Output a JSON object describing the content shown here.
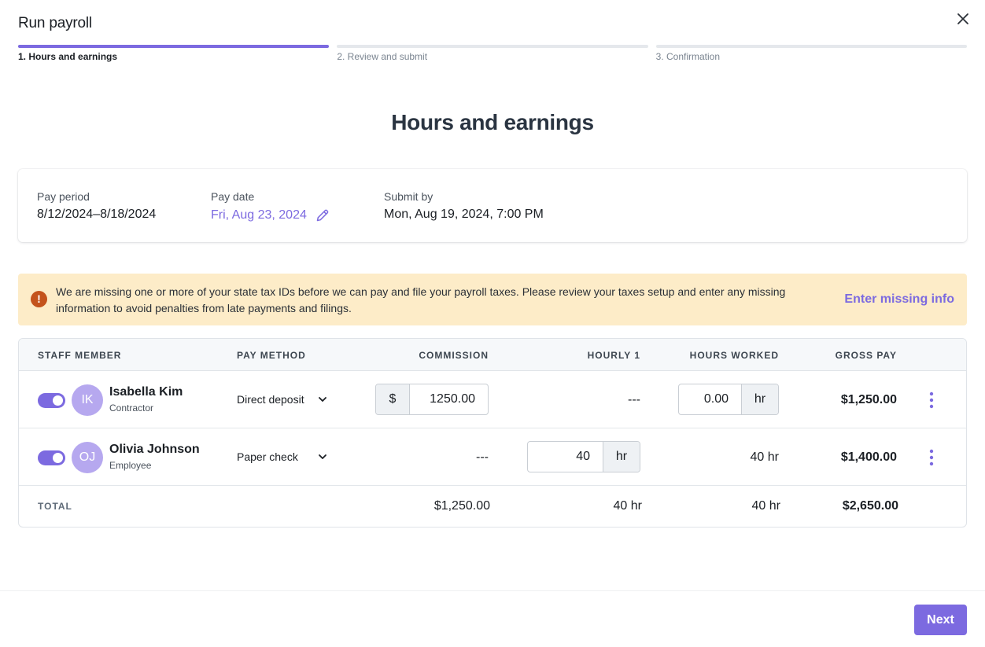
{
  "dialog": {
    "title": "Run payroll"
  },
  "steps": [
    {
      "label": "1. Hours and earnings",
      "active": true
    },
    {
      "label": "2. Review and submit",
      "active": false
    },
    {
      "label": "3. Confirmation",
      "active": false
    }
  ],
  "heading": "Hours and earnings",
  "period": {
    "pay_period_label": "Pay period",
    "pay_period_value": "8/12/2024–8/18/2024",
    "pay_date_label": "Pay date",
    "pay_date_value": "Fri, Aug 23, 2024",
    "submit_by_label": "Submit by",
    "submit_by_value": "Mon, Aug 19, 2024, 7:00 PM"
  },
  "alert": {
    "text": "We are missing one or more of your state tax IDs before we can pay and file your payroll taxes. Please review your taxes setup and enter any missing information to avoid penalties from late payments and filings.",
    "link": "Enter missing info",
    "icon": "!"
  },
  "table": {
    "headers": {
      "staff": "STAFF MEMBER",
      "pay_method": "PAY METHOD",
      "commission": "COMMISSION",
      "hourly": "HOURLY 1",
      "hours_worked": "HOURS WORKED",
      "gross_pay": "GROSS PAY"
    },
    "rows": [
      {
        "initials": "IK",
        "name": "Isabella Kim",
        "role": "Contractor",
        "pay_method": "Direct deposit",
        "commission_prefix": "$",
        "commission_value": "1250.00",
        "hourly": "---",
        "hours_value": "0.00",
        "hours_suffix": "hr",
        "gross": "$1,250.00",
        "enabled": true
      },
      {
        "initials": "OJ",
        "name": "Olivia Johnson",
        "role": "Employee",
        "pay_method": "Paper check",
        "commission": "---",
        "hourly_value": "40",
        "hourly_suffix": "hr",
        "hours_worked": "40 hr",
        "gross": "$1,400.00",
        "enabled": true
      }
    ],
    "total": {
      "label": "TOTAL",
      "commission": "$1,250.00",
      "hourly": "40 hr",
      "hours_worked": "40 hr",
      "gross": "$2,650.00"
    }
  },
  "footer": {
    "next_label": "Next"
  },
  "colors": {
    "accent": "#7c6ae0",
    "alert_bg": "#fdecc8",
    "alert_icon": "#c4531c"
  }
}
